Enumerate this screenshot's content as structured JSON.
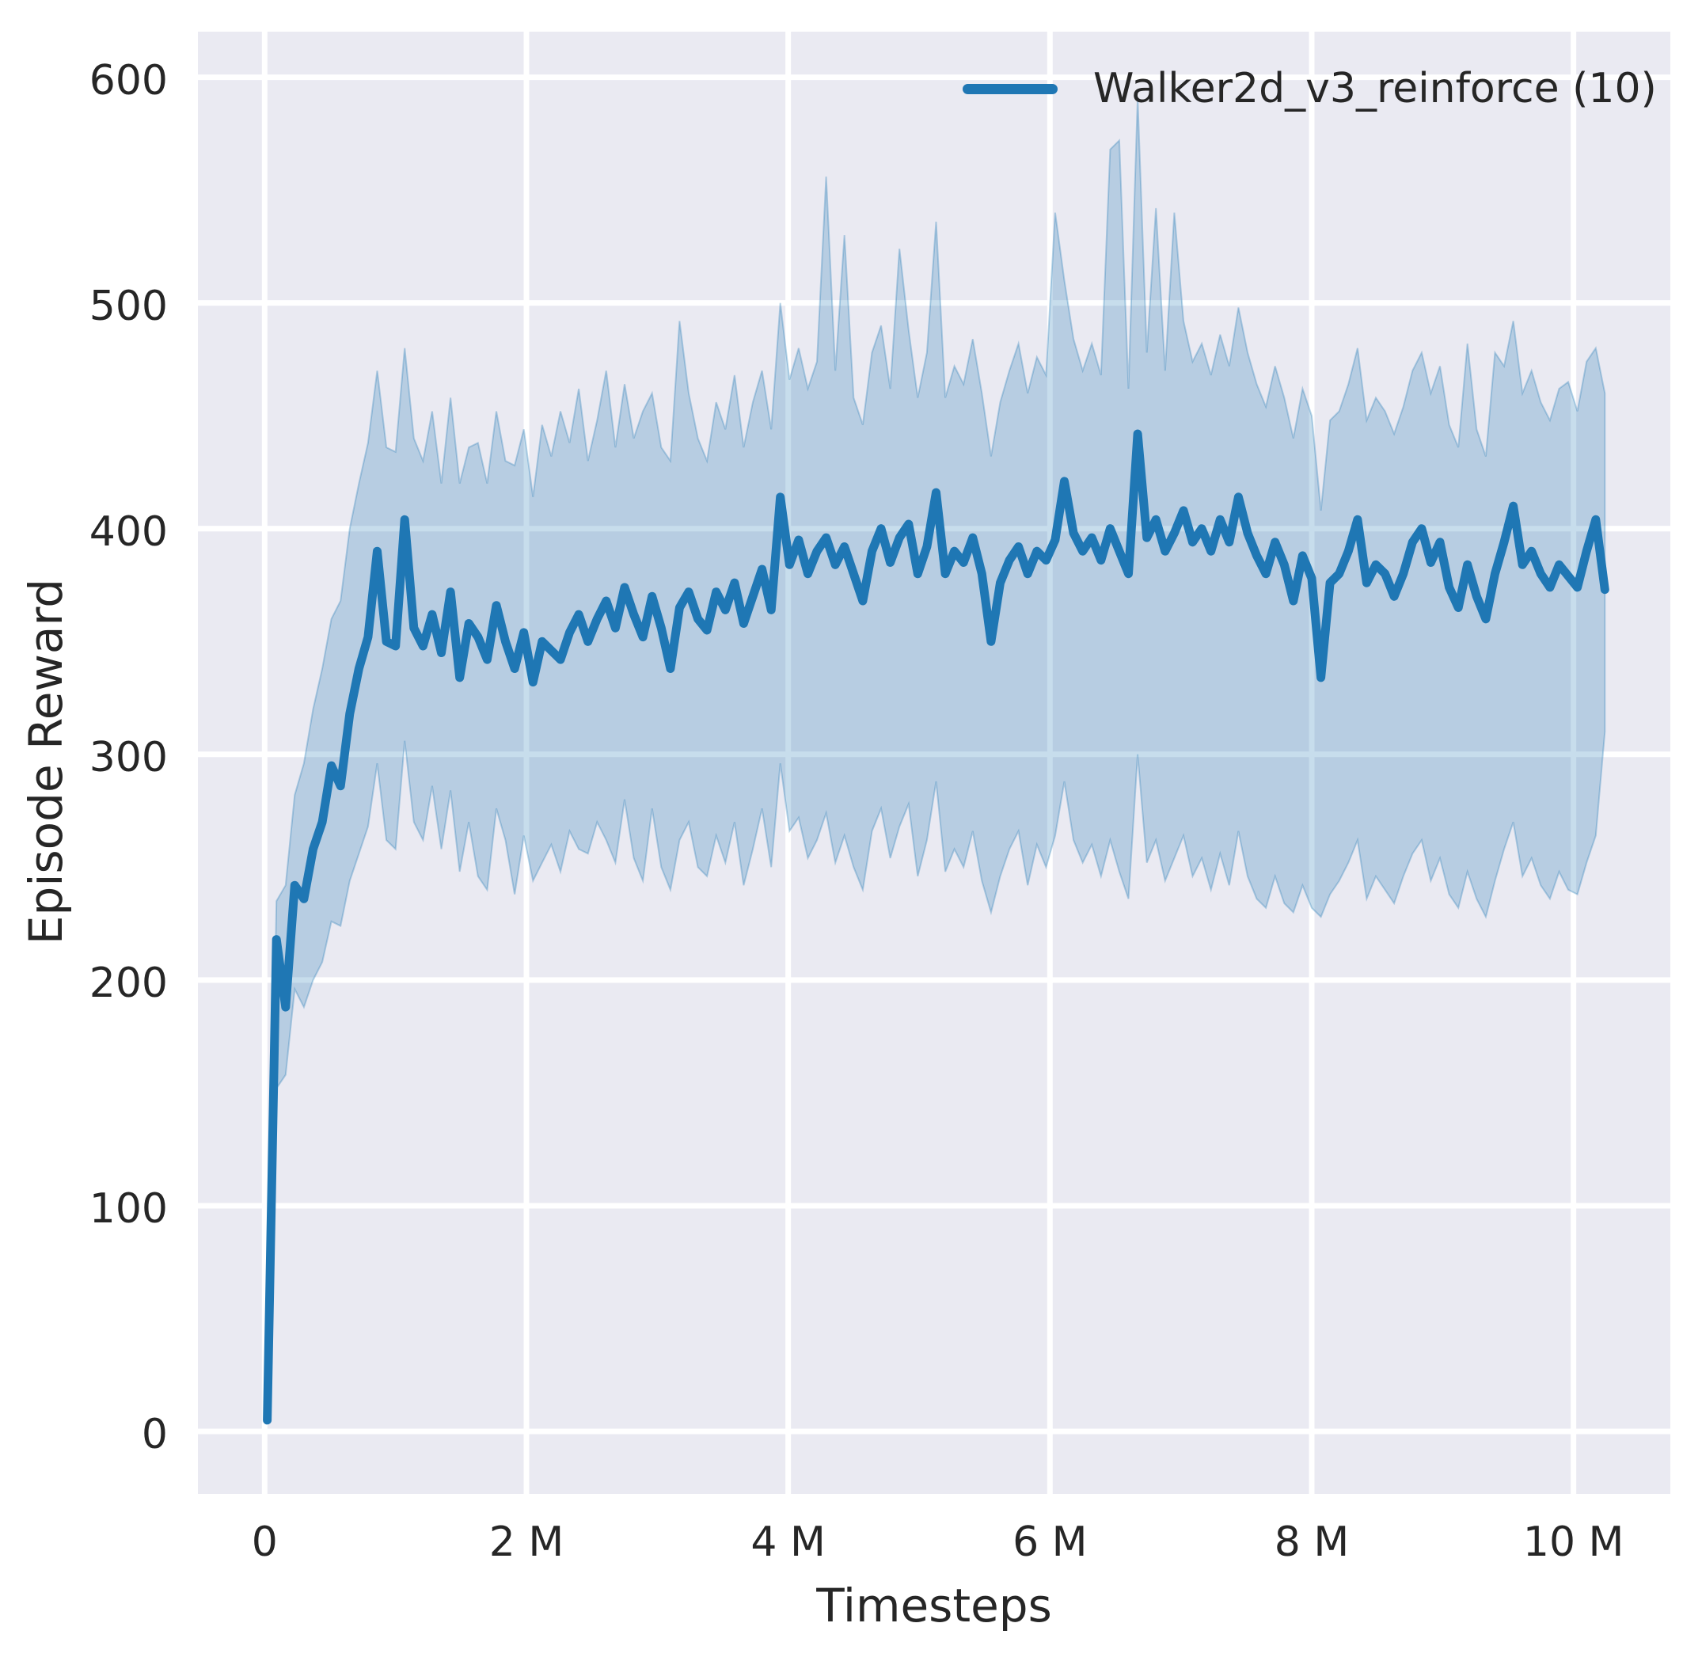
{
  "axes": {
    "xlabel": "Timesteps",
    "ylabel": "Episode Reward"
  },
  "legend": {
    "label": "Walker2d_v3_reinforce (10)",
    "color": "#1f77b4"
  },
  "colors": {
    "plot_bg": "#eaeaf2",
    "grid": "#ffffff",
    "line": "#1f77b4",
    "band": "rgba(31,119,180,0.25)",
    "band_edge": "rgba(31,119,180,0.3)",
    "text": "#262626"
  },
  "chart_data": {
    "type": "line",
    "title": "",
    "xlabel": "Timesteps",
    "ylabel": "Episode Reward",
    "grid": true,
    "legend_position": "upper right",
    "x_unit": "millions of timesteps",
    "xlim_m": [
      -0.51,
      10.74
    ],
    "ylim": [
      -27.7,
      620.2
    ],
    "xtick_values_m": [
      0,
      2,
      4,
      6,
      8,
      10
    ],
    "xtick_labels": [
      "0",
      "2 M",
      "4 M",
      "6 M",
      "8 M",
      "10 M"
    ],
    "ytick_values": [
      0,
      100,
      200,
      300,
      400,
      500,
      600
    ],
    "ytick_labels": [
      "0",
      "100",
      "200",
      "300",
      "400",
      "500",
      "600"
    ],
    "series": [
      {
        "name": "Walker2d_v3_reinforce (10)",
        "color": "#1f77b4",
        "x_start_m": 0.02,
        "x_step_m": 0.07,
        "x_count": 147,
        "mean": [
          5,
          218,
          188,
          242,
          236,
          258,
          270,
          295,
          286,
          318,
          338,
          352,
          390,
          350,
          348,
          404,
          356,
          348,
          362,
          345,
          372,
          334,
          358,
          352,
          342,
          366,
          350,
          338,
          354,
          332,
          350,
          346,
          342,
          354,
          362,
          350,
          360,
          368,
          356,
          374,
          362,
          352,
          370,
          356,
          338,
          365,
          372,
          360,
          355,
          372,
          364,
          376,
          358,
          370,
          382,
          364,
          414,
          384,
          395,
          380,
          390,
          396,
          384,
          392,
          380,
          368,
          390,
          400,
          385,
          396,
          402,
          380,
          392,
          416,
          380,
          390,
          385,
          396,
          380,
          350,
          376,
          386,
          392,
          380,
          390,
          386,
          395,
          421,
          398,
          390,
          396,
          386,
          400,
          390,
          380,
          442,
          396,
          404,
          390,
          398,
          408,
          394,
          400,
          390,
          404,
          394,
          414,
          398,
          388,
          380,
          394,
          384,
          368,
          388,
          378,
          334,
          376,
          380,
          390,
          404,
          376,
          384,
          380,
          370,
          380,
          394,
          400,
          385,
          394,
          374,
          365,
          384,
          370,
          360,
          380,
          394,
          410,
          384,
          390,
          380,
          374,
          384,
          379,
          374,
          390,
          404,
          373
        ],
        "band_lower": [
          4,
          152,
          158,
          196,
          188,
          200,
          208,
          226,
          224,
          244,
          256,
          268,
          296,
          262,
          258,
          306,
          270,
          262,
          286,
          258,
          284,
          248,
          270,
          246,
          240,
          276,
          262,
          238,
          264,
          244,
          252,
          260,
          248,
          266,
          258,
          256,
          270,
          262,
          252,
          280,
          254,
          244,
          276,
          250,
          240,
          262,
          270,
          250,
          246,
          264,
          252,
          270,
          242,
          258,
          276,
          250,
          296,
          266,
          272,
          254,
          262,
          274,
          252,
          264,
          250,
          240,
          266,
          276,
          254,
          268,
          278,
          246,
          262,
          288,
          248,
          258,
          250,
          266,
          244,
          230,
          246,
          258,
          266,
          242,
          260,
          250,
          264,
          288,
          262,
          252,
          260,
          246,
          262,
          248,
          236,
          300,
          252,
          262,
          244,
          254,
          264,
          246,
          254,
          240,
          256,
          242,
          266,
          246,
          236,
          232,
          246,
          234,
          230,
          242,
          232,
          228,
          238,
          244,
          252,
          262,
          236,
          246,
          240,
          234,
          246,
          256,
          262,
          244,
          254,
          238,
          232,
          248,
          236,
          228,
          244,
          258,
          270,
          246,
          254,
          242,
          236,
          248,
          240,
          238,
          252,
          264,
          310
        ],
        "band_upper": [
          7,
          235,
          242,
          282,
          296,
          320,
          338,
          360,
          368,
          400,
          420,
          438,
          470,
          436,
          434,
          480,
          440,
          430,
          452,
          420,
          458,
          420,
          436,
          438,
          420,
          452,
          430,
          428,
          444,
          414,
          446,
          432,
          452,
          438,
          462,
          430,
          448,
          470,
          436,
          464,
          440,
          452,
          460,
          436,
          430,
          492,
          460,
          440,
          430,
          456,
          444,
          468,
          436,
          456,
          470,
          444,
          500,
          466,
          480,
          462,
          474,
          556,
          470,
          530,
          458,
          446,
          478,
          490,
          462,
          524,
          488,
          458,
          478,
          536,
          458,
          472,
          464,
          484,
          460,
          432,
          456,
          470,
          482,
          460,
          476,
          468,
          540,
          510,
          484,
          470,
          482,
          468,
          568,
          572,
          462,
          591,
          478,
          542,
          470,
          540,
          492,
          474,
          482,
          468,
          486,
          472,
          498,
          478,
          464,
          454,
          472,
          458,
          440,
          462,
          450,
          408,
          448,
          452,
          464,
          480,
          448,
          458,
          452,
          442,
          454,
          470,
          478,
          460,
          472,
          446,
          436,
          482,
          444,
          432,
          478,
          472,
          492,
          460,
          470,
          456,
          448,
          462,
          465,
          452,
          474,
          480,
          460
        ]
      }
    ]
  }
}
